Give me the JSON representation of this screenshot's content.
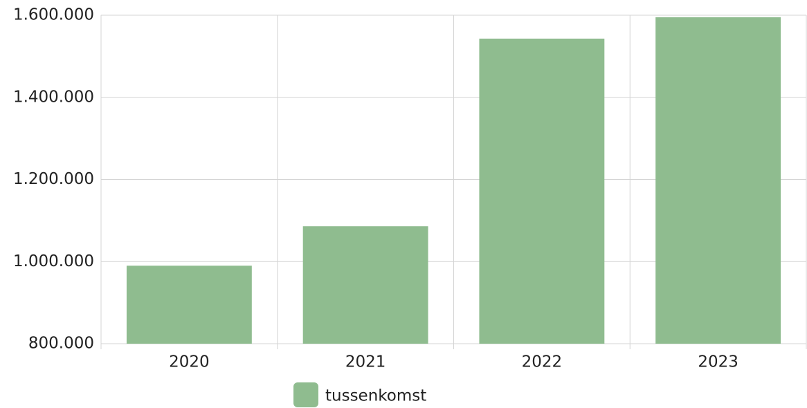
{
  "chart_data": {
    "type": "bar",
    "categories": [
      "2020",
      "2021",
      "2022",
      "2023"
    ],
    "series": [
      {
        "name": "tussenkomst",
        "color": "#8fbc8f",
        "values": [
          990000,
          1086000,
          1543000,
          1595000
        ]
      }
    ],
    "ylim": [
      800000,
      1600000
    ],
    "yticks": [
      {
        "value": 800000,
        "label": "800.000"
      },
      {
        "value": 1000000,
        "label": "1.000.000"
      },
      {
        "value": 1200000,
        "label": "1.200.000"
      },
      {
        "value": 1400000,
        "label": "1.400.000"
      },
      {
        "value": 1600000,
        "label": "1.600.000"
      }
    ],
    "grid": true,
    "legend": "bottom"
  }
}
